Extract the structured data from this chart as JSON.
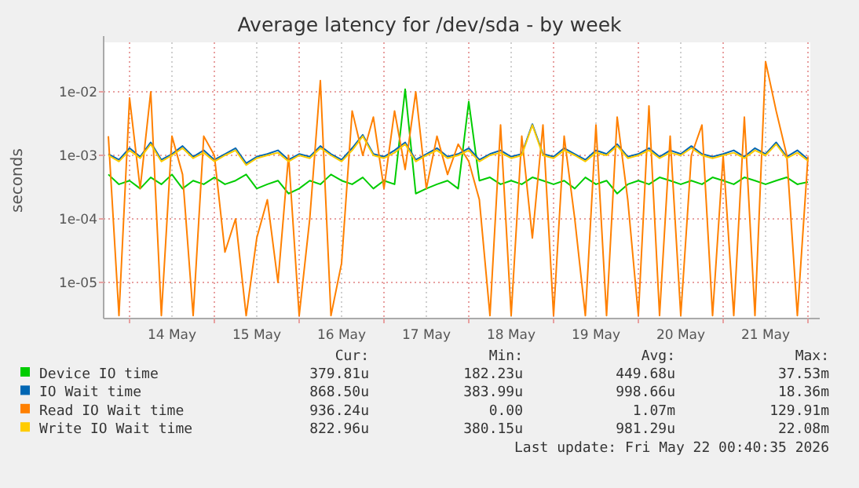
{
  "chart_data": {
    "type": "line",
    "title": "Average latency for /dev/sda - by week",
    "ylabel": "seconds",
    "log": "y",
    "grid": true,
    "legend": "bottom",
    "line_style": "solid",
    "marker": "none",
    "xlim": [
      "2026-05-13T16:40",
      "2026-05-22T00:40"
    ],
    "xticks": [
      {
        "value": "2026-05-14T00:00",
        "label": null
      },
      {
        "value": "2026-05-14T12:00",
        "label": "14 May"
      },
      {
        "value": "2026-05-15T00:00",
        "label": null
      },
      {
        "value": "2026-05-15T12:00",
        "label": "15 May"
      },
      {
        "value": "2026-05-16T00:00",
        "label": null
      },
      {
        "value": "2026-05-16T12:00",
        "label": "16 May"
      },
      {
        "value": "2026-05-17T00:00",
        "label": null
      },
      {
        "value": "2026-05-17T12:00",
        "label": "17 May"
      },
      {
        "value": "2026-05-18T00:00",
        "label": null
      },
      {
        "value": "2026-05-18T12:00",
        "label": "18 May"
      },
      {
        "value": "2026-05-19T00:00",
        "label": null
      },
      {
        "value": "2026-05-19T12:00",
        "label": "19 May"
      },
      {
        "value": "2026-05-20T00:00",
        "label": null
      },
      {
        "value": "2026-05-20T12:00",
        "label": "20 May"
      },
      {
        "value": "2026-05-21T00:00",
        "label": null
      },
      {
        "value": "2026-05-21T12:00",
        "label": "21 May"
      },
      {
        "value": "2026-05-22T00:00",
        "label": null
      }
    ],
    "ylim": [
      2.7e-06,
      0.06
    ],
    "yticks": [
      {
        "value": 1e-05,
        "label": "1e-05"
      },
      {
        "value": 0.0001,
        "label": "1e-04"
      },
      {
        "value": 0.001,
        "label": "1e-03"
      },
      {
        "value": 0.01,
        "label": "1e-02"
      }
    ],
    "x": [
      "2026-05-13T18:00",
      "2026-05-13T21:00",
      "2026-05-14T00:00",
      "2026-05-14T03:00",
      "2026-05-14T06:00",
      "2026-05-14T09:00",
      "2026-05-14T12:00",
      "2026-05-14T15:00",
      "2026-05-14T18:00",
      "2026-05-14T21:00",
      "2026-05-15T00:00",
      "2026-05-15T03:00",
      "2026-05-15T06:00",
      "2026-05-15T09:00",
      "2026-05-15T12:00",
      "2026-05-15T15:00",
      "2026-05-15T18:00",
      "2026-05-15T21:00",
      "2026-05-16T00:00",
      "2026-05-16T03:00",
      "2026-05-16T06:00",
      "2026-05-16T09:00",
      "2026-05-16T12:00",
      "2026-05-16T15:00",
      "2026-05-16T18:00",
      "2026-05-16T21:00",
      "2026-05-17T00:00",
      "2026-05-17T03:00",
      "2026-05-17T06:00",
      "2026-05-17T09:00",
      "2026-05-17T12:00",
      "2026-05-17T15:00",
      "2026-05-17T18:00",
      "2026-05-17T21:00",
      "2026-05-18T00:00",
      "2026-05-18T03:00",
      "2026-05-18T06:00",
      "2026-05-18T09:00",
      "2026-05-18T12:00",
      "2026-05-18T15:00",
      "2026-05-18T18:00",
      "2026-05-18T21:00",
      "2026-05-19T00:00",
      "2026-05-19T03:00",
      "2026-05-19T06:00",
      "2026-05-19T09:00",
      "2026-05-19T12:00",
      "2026-05-19T15:00",
      "2026-05-19T18:00",
      "2026-05-19T21:00",
      "2026-05-20T00:00",
      "2026-05-20T03:00",
      "2026-05-20T06:00",
      "2026-05-20T09:00",
      "2026-05-20T12:00",
      "2026-05-20T15:00",
      "2026-05-20T18:00",
      "2026-05-20T21:00",
      "2026-05-21T00:00",
      "2026-05-21T03:00",
      "2026-05-21T06:00",
      "2026-05-21T09:00",
      "2026-05-21T12:00",
      "2026-05-21T15:00",
      "2026-05-21T18:00",
      "2026-05-21T21:00",
      "2026-05-22T00:00"
    ],
    "series": [
      {
        "name": "Device IO time",
        "color": "#00cc00",
        "values": [
          0.0005,
          0.00035,
          0.0004,
          0.0003,
          0.00045,
          0.00035,
          0.0005,
          0.0003,
          0.0004,
          0.00035,
          0.00045,
          0.00035,
          0.0004,
          0.0005,
          0.0003,
          0.00035,
          0.0004,
          0.00025,
          0.0003,
          0.0004,
          0.00035,
          0.0005,
          0.0004,
          0.00035,
          0.00045,
          0.0003,
          0.0004,
          0.00035,
          0.011,
          0.00025,
          0.0003,
          0.00035,
          0.0004,
          0.0003,
          0.007,
          0.0004,
          0.00045,
          0.00035,
          0.0004,
          0.00035,
          0.00045,
          0.0004,
          0.00035,
          0.0004,
          0.0003,
          0.00045,
          0.00035,
          0.0004,
          0.00025,
          0.00035,
          0.0004,
          0.00035,
          0.00045,
          0.0004,
          0.00035,
          0.0004,
          0.00035,
          0.00045,
          0.0004,
          0.00035,
          0.00045,
          0.0004,
          0.00035,
          0.0004,
          0.00045,
          0.00035,
          0.00038
        ]
      },
      {
        "name": "IO Wait time",
        "color": "#0066b3",
        "values": [
          0.00105,
          0.00085,
          0.0013,
          0.00095,
          0.0016,
          0.00085,
          0.00105,
          0.0014,
          0.00095,
          0.0012,
          0.00085,
          0.00105,
          0.0013,
          0.00075,
          0.00095,
          0.00105,
          0.0012,
          0.00085,
          0.00105,
          0.00095,
          0.0014,
          0.00105,
          0.00085,
          0.0013,
          0.0021,
          0.00105,
          0.00095,
          0.0012,
          0.0016,
          0.00085,
          0.00105,
          0.0013,
          0.00095,
          0.00105,
          0.0013,
          0.00085,
          0.00105,
          0.0012,
          0.00095,
          0.00105,
          0.0031,
          0.00105,
          0.00095,
          0.0013,
          0.00105,
          0.00085,
          0.0012,
          0.00105,
          0.0015,
          0.00095,
          0.00105,
          0.0013,
          0.00095,
          0.0012,
          0.00105,
          0.0014,
          0.00105,
          0.00095,
          0.00105,
          0.0012,
          0.00095,
          0.0013,
          0.00105,
          0.0016,
          0.00095,
          0.0012,
          0.00087
        ]
      },
      {
        "name": "Read IO Wait time",
        "color": "#ff8000",
        "values": [
          0.002,
          3e-06,
          0.008,
          0.0003,
          0.01,
          3e-06,
          0.002,
          0.0005,
          3e-06,
          0.002,
          0.001,
          3e-05,
          0.0001,
          3e-06,
          5e-05,
          0.0002,
          1e-05,
          0.001,
          3e-06,
          0.0001,
          0.015,
          3e-06,
          2e-05,
          0.005,
          0.001,
          0.004,
          0.0003,
          0.005,
          0.0006,
          0.01,
          0.0003,
          0.002,
          0.0005,
          0.0015,
          0.0008,
          0.0002,
          3e-06,
          0.003,
          3e-06,
          0.002,
          5e-05,
          0.003,
          3e-06,
          0.002,
          0.0001,
          3e-06,
          0.003,
          3e-06,
          0.004,
          0.0002,
          3e-06,
          0.006,
          3e-06,
          0.002,
          3e-06,
          0.001,
          0.003,
          3e-06,
          0.001,
          3e-06,
          0.004,
          3e-06,
          0.03,
          0.005,
          0.001,
          3e-06,
          0.00094
        ]
      },
      {
        "name": "Write IO Wait time",
        "color": "#ffcc00",
        "values": [
          0.001,
          0.0008,
          0.0012,
          0.0009,
          0.0015,
          0.0008,
          0.001,
          0.0013,
          0.0009,
          0.0011,
          0.0008,
          0.001,
          0.0012,
          0.0007,
          0.0009,
          0.001,
          0.0011,
          0.0008,
          0.001,
          0.0009,
          0.0013,
          0.001,
          0.0008,
          0.0012,
          0.002,
          0.001,
          0.0009,
          0.0011,
          0.0015,
          0.0008,
          0.001,
          0.0012,
          0.0009,
          0.001,
          0.0012,
          0.0008,
          0.001,
          0.0011,
          0.0009,
          0.001,
          0.003,
          0.001,
          0.0009,
          0.0012,
          0.001,
          0.0008,
          0.0011,
          0.001,
          0.0014,
          0.0009,
          0.001,
          0.0012,
          0.0009,
          0.0011,
          0.001,
          0.0013,
          0.001,
          0.0009,
          0.001,
          0.0011,
          0.0009,
          0.0012,
          0.001,
          0.0015,
          0.0009,
          0.0011,
          0.00082
        ]
      }
    ],
    "annotations": [
      "Cur:",
      "Min:",
      "Avg:",
      "Max:",
      "379.81u",
      "182.23u",
      "449.68u",
      "37.53m",
      "868.50u",
      "383.99u",
      "998.66u",
      "18.36m",
      "936.24u",
      "0.00",
      "1.07m",
      "129.91m",
      "822.96u",
      "380.15u",
      "981.29u",
      "22.08m",
      "Last update: Fri May 22 00:40:35 2026"
    ]
  }
}
